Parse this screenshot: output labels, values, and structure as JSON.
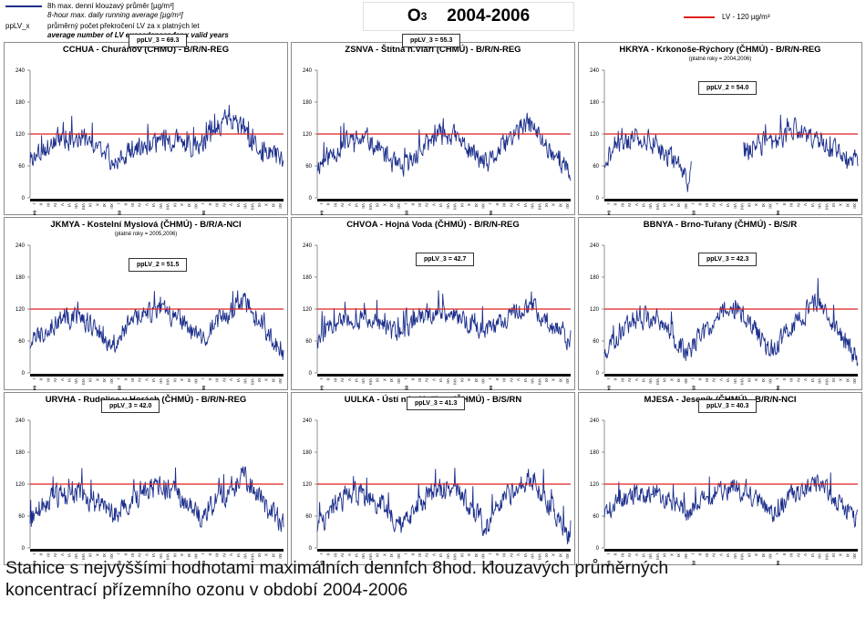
{
  "header": {
    "legend_line_cz": "8h max. denní klouzavý průměr [µg/m³]",
    "legend_line_en": "8-hour max. daily running average [µg/m³]",
    "legend_key": "ppLV_x",
    "legend_key_cz": "průměrný počet překročení LV za x platných let",
    "legend_key_en": "average number of LV exceedences for x valid years",
    "title_main": "O",
    "title_sub": "3",
    "title_years": "2004-2006",
    "lv_label": "LV   - 120 µg/m³",
    "colors": {
      "series": "#1c2f8c",
      "limit": "#e02020"
    }
  },
  "caption": {
    "line1": "Stanice s nejvyššími hodnotami maximálních denních 8hod. klouzavých průměrných",
    "line2": "koncentrací přízemního ozonu v období 2004-2006"
  },
  "chart_data": [
    {
      "type": "line",
      "title": "CCHUA - Churáňov (ČHMÚ) - B/R/N-REG",
      "note": "",
      "pplv": "ppLV_3 = 69.3",
      "ylim": [
        0,
        240
      ],
      "yticks": [
        "0",
        "60",
        "120",
        "180",
        "240"
      ],
      "limit": 120,
      "month_labels": [
        "I",
        "II",
        "III",
        "IV",
        "V",
        "VI",
        "VII",
        "VIII",
        "IX",
        "X",
        "XI",
        "XII"
      ],
      "year_labels": [
        "04",
        "05",
        "06"
      ],
      "series_profile": [
        [
          0,
          75
        ],
        [
          0.05,
          90
        ],
        [
          0.1,
          105
        ],
        [
          0.2,
          110
        ],
        [
          0.25,
          100
        ],
        [
          0.3,
          85
        ],
        [
          0.33,
          65
        ],
        [
          0.4,
          90
        ],
        [
          0.5,
          105
        ],
        [
          0.55,
          110
        ],
        [
          0.62,
          100
        ],
        [
          0.67,
          95
        ],
        [
          0.72,
          130
        ],
        [
          0.78,
          150
        ],
        [
          0.83,
          140
        ],
        [
          0.88,
          100
        ],
        [
          0.95,
          80
        ],
        [
          1,
          75
        ]
      ],
      "noise": 18,
      "seed": 3,
      "gap": null
    },
    {
      "type": "line",
      "title": "ZSNVA - Štítná n.Vláří (ČHMÚ) - B/R/N-REG",
      "note": "",
      "pplv": "ppLV_3 = 55.3",
      "ylim": [
        0,
        240
      ],
      "yticks": [
        "0",
        "60",
        "120",
        "180",
        "240"
      ],
      "limit": 120,
      "month_labels": [
        "I",
        "II",
        "III",
        "IV",
        "V",
        "VI",
        "VII",
        "VIII",
        "IX",
        "X",
        "XI",
        "XII"
      ],
      "year_labels": [
        "04",
        "05",
        "06"
      ],
      "series_profile": [
        [
          0,
          60
        ],
        [
          0.05,
          80
        ],
        [
          0.12,
          105
        ],
        [
          0.2,
          110
        ],
        [
          0.27,
          80
        ],
        [
          0.33,
          50
        ],
        [
          0.4,
          85
        ],
        [
          0.47,
          115
        ],
        [
          0.53,
          120
        ],
        [
          0.6,
          90
        ],
        [
          0.67,
          60
        ],
        [
          0.73,
          95
        ],
        [
          0.8,
          130
        ],
        [
          0.84,
          140
        ],
        [
          0.9,
          100
        ],
        [
          0.96,
          70
        ],
        [
          1,
          40
        ]
      ],
      "noise": 18,
      "seed": 11,
      "gap": null
    },
    {
      "type": "line",
      "title": "HKRYA - Krkonoše-Rýchory (ČHMÚ) - B/R/N-REG",
      "note": "(platné roky = 2004,2006)",
      "pplv": "ppLV_2 = 54.0",
      "ylim": [
        0,
        240
      ],
      "yticks": [
        "0",
        "60",
        "120",
        "180",
        "240"
      ],
      "limit": 120,
      "month_labels": [
        "I",
        "II",
        "III",
        "IV",
        "V",
        "VI",
        "VII",
        "VIII",
        "IX",
        "X",
        "XI",
        "XII"
      ],
      "year_labels": [
        "04",
        "05",
        "06"
      ],
      "series_profile": [
        [
          0,
          70
        ],
        [
          0.05,
          95
        ],
        [
          0.12,
          115
        ],
        [
          0.2,
          105
        ],
        [
          0.25,
          80
        ],
        [
          0.3,
          55
        ],
        [
          0.33,
          30
        ],
        [
          0.34,
          60
        ],
        [
          0.4,
          70
        ],
        [
          0.45,
          80
        ],
        [
          0.5,
          75
        ],
        [
          0.55,
          90
        ],
        [
          0.62,
          100
        ],
        [
          0.7,
          110
        ],
        [
          0.75,
          130
        ],
        [
          0.8,
          120
        ],
        [
          0.88,
          100
        ],
        [
          0.95,
          80
        ],
        [
          1,
          70
        ]
      ],
      "noise": 18,
      "seed": 21,
      "gap": [
        0.345,
        0.55
      ]
    },
    {
      "type": "line",
      "title": "JKMYA - Kostelní Myslová (ČHMÚ) - B/R/A-NCI",
      "note": "(platné roky = 2005,2006)",
      "pplv": "ppLV_2 = 51.5",
      "ylim": [
        0,
        240
      ],
      "yticks": [
        "0",
        "60",
        "120",
        "180",
        "240"
      ],
      "limit": 120,
      "month_labels": [
        "I",
        "II",
        "III",
        "IV",
        "V",
        "VI",
        "VII",
        "VIII",
        "IX",
        "X",
        "XI",
        "XII"
      ],
      "year_labels": [
        "04",
        "05",
        "06"
      ],
      "series_profile": [
        [
          0,
          55
        ],
        [
          0.05,
          80
        ],
        [
          0.12,
          100
        ],
        [
          0.2,
          105
        ],
        [
          0.27,
          80
        ],
        [
          0.33,
          55
        ],
        [
          0.4,
          95
        ],
        [
          0.47,
          115
        ],
        [
          0.53,
          115
        ],
        [
          0.6,
          90
        ],
        [
          0.67,
          60
        ],
        [
          0.73,
          90
        ],
        [
          0.8,
          120
        ],
        [
          0.85,
          135
        ],
        [
          0.9,
          100
        ],
        [
          0.96,
          60
        ],
        [
          1,
          40
        ]
      ],
      "noise": 18,
      "seed": 33,
      "gap": null
    },
    {
      "type": "line",
      "title": "CHVOA - Hojná Voda (ČHMÚ) - B/R/N-REG",
      "note": "",
      "pplv": "ppLV_3 = 42.7",
      "ylim": [
        0,
        240
      ],
      "yticks": [
        "0",
        "60",
        "120",
        "180",
        "240"
      ],
      "limit": 120,
      "month_labels": [
        "I",
        "II",
        "III",
        "IV",
        "V",
        "VI",
        "VII",
        "VIII",
        "IX",
        "X",
        "XI",
        "XII"
      ],
      "year_labels": [
        "04",
        "05",
        "06"
      ],
      "series_profile": [
        [
          0,
          65
        ],
        [
          0.05,
          85
        ],
        [
          0.12,
          100
        ],
        [
          0.2,
          100
        ],
        [
          0.27,
          85
        ],
        [
          0.33,
          70
        ],
        [
          0.4,
          100
        ],
        [
          0.47,
          115
        ],
        [
          0.53,
          110
        ],
        [
          0.6,
          95
        ],
        [
          0.67,
          75
        ],
        [
          0.73,
          100
        ],
        [
          0.8,
          120
        ],
        [
          0.85,
          125
        ],
        [
          0.9,
          100
        ],
        [
          0.96,
          75
        ],
        [
          1,
          60
        ]
      ],
      "noise": 17,
      "seed": 47,
      "gap": null
    },
    {
      "type": "line",
      "title": "BBNYA - Brno-Tuřany (ČHMÚ) - B/S/R",
      "note": "",
      "pplv": "ppLV_3 = 42.3",
      "ylim": [
        0,
        240
      ],
      "yticks": [
        "0",
        "60",
        "120",
        "180",
        "240"
      ],
      "limit": 120,
      "month_labels": [
        "I",
        "II",
        "III",
        "IV",
        "V",
        "VI",
        "VII",
        "VIII",
        "IX",
        "X",
        "XI",
        "XII"
      ],
      "year_labels": [
        "04",
        "05",
        "06"
      ],
      "series_profile": [
        [
          0,
          45
        ],
        [
          0.05,
          70
        ],
        [
          0.12,
          100
        ],
        [
          0.2,
          105
        ],
        [
          0.27,
          70
        ],
        [
          0.33,
          35
        ],
        [
          0.4,
          80
        ],
        [
          0.47,
          115
        ],
        [
          0.53,
          115
        ],
        [
          0.6,
          75
        ],
        [
          0.67,
          40
        ],
        [
          0.73,
          85
        ],
        [
          0.8,
          115
        ],
        [
          0.84,
          135
        ],
        [
          0.9,
          95
        ],
        [
          0.96,
          50
        ],
        [
          1,
          25
        ]
      ],
      "noise": 18,
      "seed": 58,
      "gap": null
    },
    {
      "type": "line",
      "title": "URVHA - Rudolice v Horách (ČHMÚ) - B/R/N-REG",
      "note": "",
      "pplv": "ppLV_3 = 42.0",
      "ylim": [
        0,
        240
      ],
      "yticks": [
        "0",
        "60",
        "120",
        "180",
        "240"
      ],
      "limit": 120,
      "month_labels": [
        "I",
        "II",
        "III",
        "IV",
        "V",
        "VI",
        "VII",
        "VIII",
        "IX",
        "X",
        "XI",
        "XII"
      ],
      "year_labels": [
        "04",
        "05",
        "06"
      ],
      "series_profile": [
        [
          0,
          55
        ],
        [
          0.05,
          80
        ],
        [
          0.12,
          100
        ],
        [
          0.2,
          105
        ],
        [
          0.27,
          80
        ],
        [
          0.33,
          60
        ],
        [
          0.4,
          95
        ],
        [
          0.47,
          110
        ],
        [
          0.53,
          115
        ],
        [
          0.6,
          95
        ],
        [
          0.67,
          60
        ],
        [
          0.73,
          90
        ],
        [
          0.8,
          115
        ],
        [
          0.84,
          135
        ],
        [
          0.9,
          100
        ],
        [
          0.96,
          60
        ],
        [
          1,
          50
        ]
      ],
      "noise": 20,
      "seed": 64,
      "gap": null
    },
    {
      "type": "line",
      "title": "UULKA - Ústí n.L.-Kočkov (ČHMÚ) - B/S/RN",
      "note": "",
      "pplv": "ppLV_3 = 41.3",
      "ylim": [
        0,
        240
      ],
      "yticks": [
        "0",
        "60",
        "120",
        "180",
        "240"
      ],
      "limit": 120,
      "month_labels": [
        "I",
        "II",
        "III",
        "IV",
        "V",
        "VI",
        "VII",
        "VIII",
        "IX",
        "X",
        "XI",
        "XII"
      ],
      "year_labels": [
        "04",
        "05",
        "06"
      ],
      "series_profile": [
        [
          0,
          40
        ],
        [
          0.05,
          70
        ],
        [
          0.12,
          100
        ],
        [
          0.2,
          100
        ],
        [
          0.27,
          70
        ],
        [
          0.33,
          35
        ],
        [
          0.4,
          80
        ],
        [
          0.47,
          110
        ],
        [
          0.53,
          115
        ],
        [
          0.6,
          75
        ],
        [
          0.67,
          40
        ],
        [
          0.73,
          85
        ],
        [
          0.8,
          115
        ],
        [
          0.84,
          140
        ],
        [
          0.9,
          95
        ],
        [
          0.96,
          40
        ],
        [
          1,
          20
        ]
      ],
      "noise": 20,
      "seed": 77,
      "gap": null
    },
    {
      "type": "line",
      "title": "MJESA - Jeseník (ČHMÚ) - B/R/N-NCI",
      "note": "",
      "pplv": "ppLV_3 = 40.3",
      "ylim": [
        0,
        240
      ],
      "yticks": [
        "0",
        "60",
        "120",
        "180",
        "240"
      ],
      "limit": 120,
      "month_labels": [
        "I",
        "II",
        "III",
        "IV",
        "V",
        "VI",
        "VII",
        "VIII",
        "IX",
        "X",
        "XI",
        "XII"
      ],
      "year_labels": [
        "04",
        "05",
        "06"
      ],
      "series_profile": [
        [
          0,
          65
        ],
        [
          0.05,
          85
        ],
        [
          0.12,
          100
        ],
        [
          0.2,
          105
        ],
        [
          0.27,
          85
        ],
        [
          0.33,
          65
        ],
        [
          0.4,
          95
        ],
        [
          0.47,
          110
        ],
        [
          0.53,
          110
        ],
        [
          0.6,
          90
        ],
        [
          0.67,
          65
        ],
        [
          0.73,
          95
        ],
        [
          0.8,
          115
        ],
        [
          0.84,
          125
        ],
        [
          0.9,
          95
        ],
        [
          0.96,
          70
        ],
        [
          1,
          55
        ]
      ],
      "noise": 17,
      "seed": 89,
      "gap": null
    }
  ]
}
